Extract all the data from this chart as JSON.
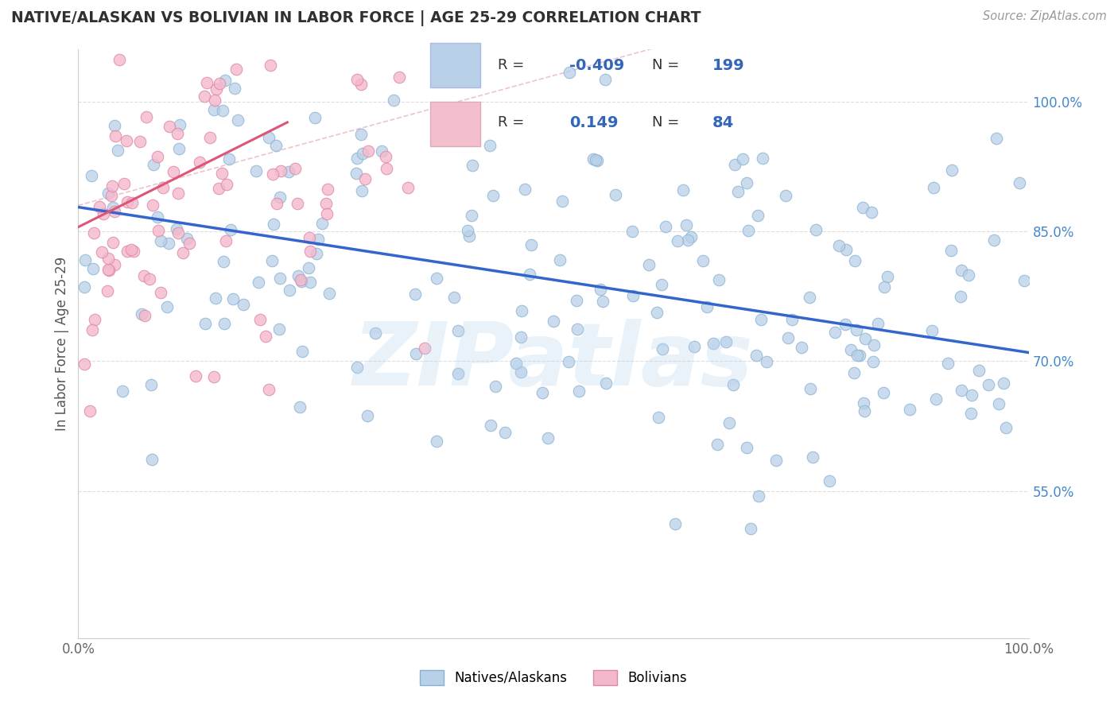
{
  "title": "NATIVE/ALASKAN VS BOLIVIAN IN LABOR FORCE | AGE 25-29 CORRELATION CHART",
  "source_text": "Source: ZipAtlas.com",
  "ylabel": "In Labor Force | Age 25-29",
  "watermark": "ZIPatlas",
  "legend": {
    "blue_r": "-0.409",
    "blue_n": "199",
    "pink_r": "0.149",
    "pink_n": "84",
    "blue_color": "#b8d0e8",
    "pink_color": "#f4bfcc",
    "blue_label": "Natives/Alaskans",
    "pink_label": "Bolivians"
  },
  "blue_trend": {
    "slope": -0.168,
    "intercept": 0.878
  },
  "pink_trend": {
    "slope": 0.55,
    "intercept": 0.855
  },
  "pink_dash_slope": 0.3,
  "pink_dash_intercept": 0.88,
  "xlim": [
    0.0,
    1.0
  ],
  "ylim": [
    0.38,
    1.06
  ],
  "yticks": [
    0.55,
    0.7,
    0.85,
    1.0
  ],
  "ytick_labels": [
    "55.0%",
    "70.0%",
    "85.0%",
    "100.0%"
  ],
  "xticks": [
    0.0,
    0.25,
    0.5,
    0.75,
    1.0
  ],
  "xtick_labels": [
    "0.0%",
    "",
    "",
    "",
    "100.0%"
  ],
  "background_color": "#ffffff",
  "grid_color": "#dddddd",
  "title_color": "#303030",
  "blue_dot_color": "#b8d0e8",
  "blue_dot_edge": "#88b0d0",
  "blue_line_color": "#3366cc",
  "pink_dot_color": "#f4b8cc",
  "pink_dot_edge": "#dd88a8",
  "pink_line_color": "#dd5577",
  "pink_dash_color": "#dd8899",
  "seed": 99,
  "n_blue": 199,
  "n_pink": 84
}
